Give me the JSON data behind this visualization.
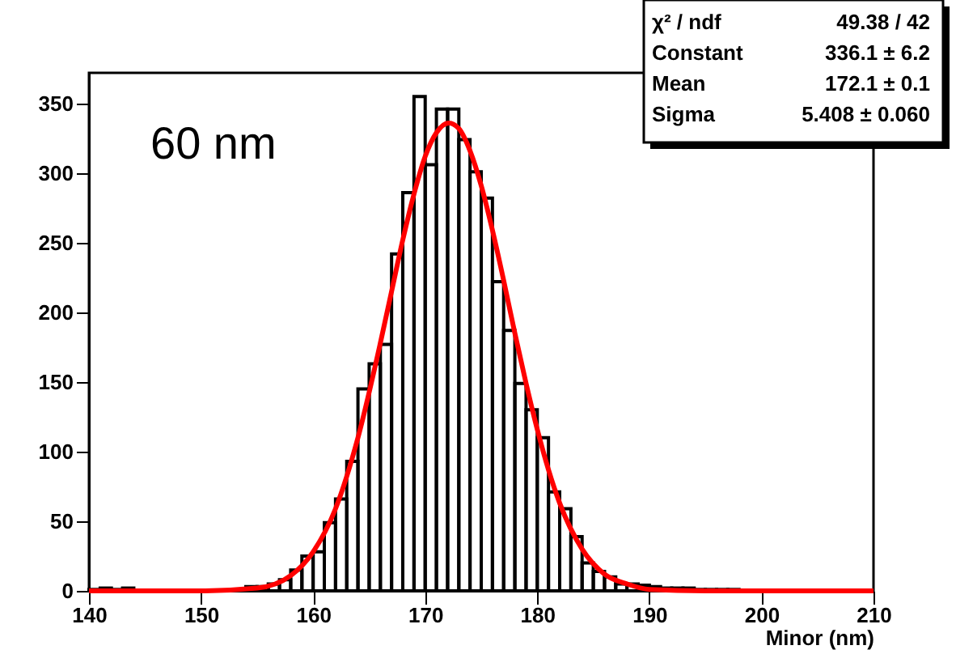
{
  "chart_data": {
    "type": "histogram",
    "xlabel": "Minor (nm)",
    "xlim": [
      140,
      210
    ],
    "xticks": [
      140,
      150,
      160,
      170,
      180,
      190,
      200,
      210
    ],
    "ylim": [
      0,
      372
    ],
    "yticks": [
      0,
      50,
      100,
      150,
      200,
      250,
      300,
      350
    ],
    "grid": false,
    "annotations": [
      "60 nm",
      "χ² / ndf",
      "49.38 / 42",
      "Constant",
      "336.1 ± 6.2",
      "Mean",
      "172.1 ± 0.1",
      "Sigma",
      "5.408 ± 0.060"
    ],
    "series": [
      {
        "color": "#000000",
        "bins": [
          140,
          141,
          142,
          143,
          144,
          145,
          146,
          147,
          148,
          149,
          150,
          151,
          152,
          153,
          154,
          155,
          156,
          157,
          158,
          159,
          160,
          161,
          162,
          163,
          164,
          165,
          166,
          167,
          168,
          169,
          170,
          171,
          172,
          173,
          174,
          175,
          176,
          177,
          178,
          179,
          180,
          181,
          182,
          183,
          184,
          185,
          186,
          187,
          188,
          189,
          190,
          191,
          192,
          193,
          194,
          195,
          196,
          197,
          198,
          199,
          200,
          201,
          202,
          203,
          204,
          205,
          206,
          207,
          208,
          209,
          210
        ],
        "values": [
          1,
          2,
          1,
          2,
          0,
          0,
          0,
          0,
          0,
          0,
          0,
          0,
          0,
          1,
          3,
          3,
          5,
          8,
          15,
          25,
          28,
          49,
          66,
          93,
          145,
          163,
          177,
          242,
          286,
          355,
          306,
          346,
          346,
          324,
          301,
          282,
          222,
          187,
          149,
          130,
          110,
          71,
          59,
          39,
          20,
          14,
          10,
          5,
          5,
          4,
          3,
          2,
          2,
          2,
          1,
          1,
          1,
          1,
          0,
          0,
          0,
          0,
          0,
          0,
          0,
          0,
          0,
          0,
          0,
          0
        ]
      },
      {
        "type": "line",
        "color": "#ff0000",
        "x": [
          140,
          150,
          155,
          158,
          160,
          162,
          164,
          166,
          167,
          168,
          169,
          170,
          171,
          172.1,
          173,
          174,
          175,
          176,
          177,
          178,
          179,
          180,
          181,
          182,
          184,
          186,
          188,
          190,
          195,
          210
        ],
        "values": [
          0,
          0,
          2,
          11,
          28,
          59,
          110,
          178,
          215,
          252,
          285,
          312,
          329,
          336,
          332,
          316,
          291,
          259,
          223,
          185,
          149,
          116,
          87,
          63,
          30,
          12,
          5,
          1,
          0,
          0
        ]
      }
    ]
  }
}
